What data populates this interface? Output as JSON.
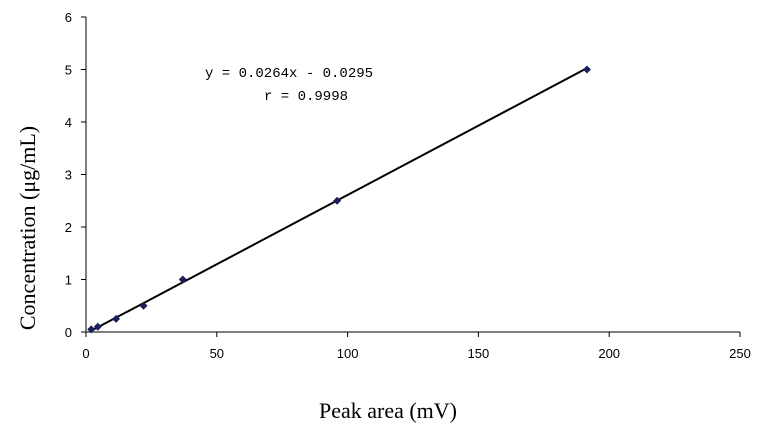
{
  "chart_data": {
    "type": "scatter",
    "xlabel": "Peak area (mV)",
    "ylabel": "Concentration (μg/mL)",
    "xlim": [
      0,
      250
    ],
    "ylim": [
      0,
      6
    ],
    "xticks": [
      "0",
      "50",
      "100",
      "150",
      "200",
      "250"
    ],
    "yticks": [
      "0",
      "1",
      "2",
      "3",
      "4",
      "5",
      "6"
    ],
    "series": [
      {
        "points": [
          {
            "x": 2.0,
            "y": 0.05
          },
          {
            "x": 4.5,
            "y": 0.1
          },
          {
            "x": 11.5,
            "y": 0.25
          },
          {
            "x": 22.0,
            "y": 0.5
          },
          {
            "x": 37.0,
            "y": 1.0
          },
          {
            "x": 96.0,
            "y": 2.5
          },
          {
            "x": 191.5,
            "y": 5.0
          }
        ]
      }
    ],
    "trendline": {
      "slope": 0.0264,
      "intercept": -0.0295
    },
    "annotations": {
      "equation": "y = 0.0264x - 0.0295",
      "r_value": "r = 0.9998"
    },
    "grid": false,
    "legend": "none",
    "colors": {
      "marker": "#1a1f5c",
      "line": "#000000"
    }
  }
}
